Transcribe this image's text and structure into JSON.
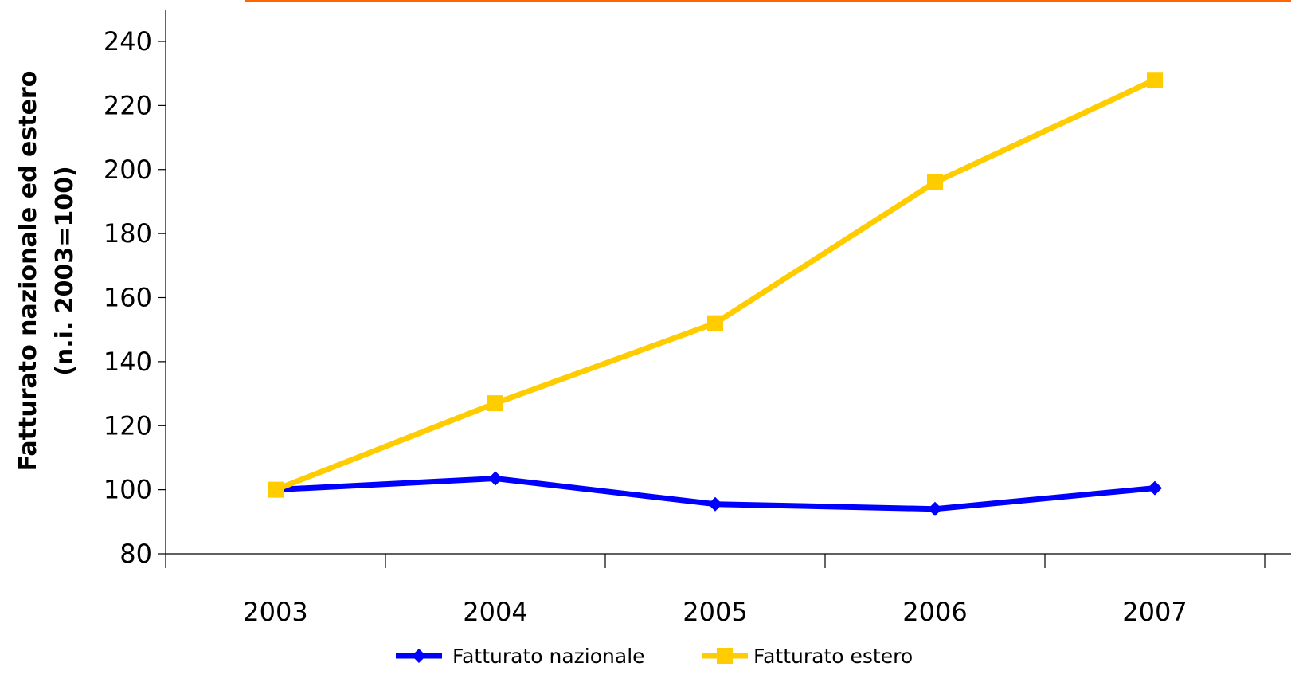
{
  "chart_data": {
    "type": "line",
    "categories": [
      "2003",
      "2004",
      "2005",
      "2006",
      "2007"
    ],
    "series": [
      {
        "name": "Fatturato nazionale",
        "values": [
          100,
          103.5,
          95.5,
          94,
          100.5
        ],
        "color": "#0000FF",
        "marker": "diamond"
      },
      {
        "name": "Fatturato estero",
        "values": [
          100,
          127,
          152,
          196,
          228
        ],
        "color": "#FFCC00",
        "marker": "square"
      }
    ],
    "title": "",
    "xlabel": "",
    "ylabel_lines": [
      "Fatturato nazionale ed estero",
      "(n.i. 2003=100)"
    ],
    "ylim": [
      80,
      240
    ],
    "yticks": [
      80,
      100,
      120,
      140,
      160,
      180,
      200,
      220,
      240
    ],
    "grid": false,
    "legend_position": "bottom"
  },
  "accent_color": "#FF6600"
}
